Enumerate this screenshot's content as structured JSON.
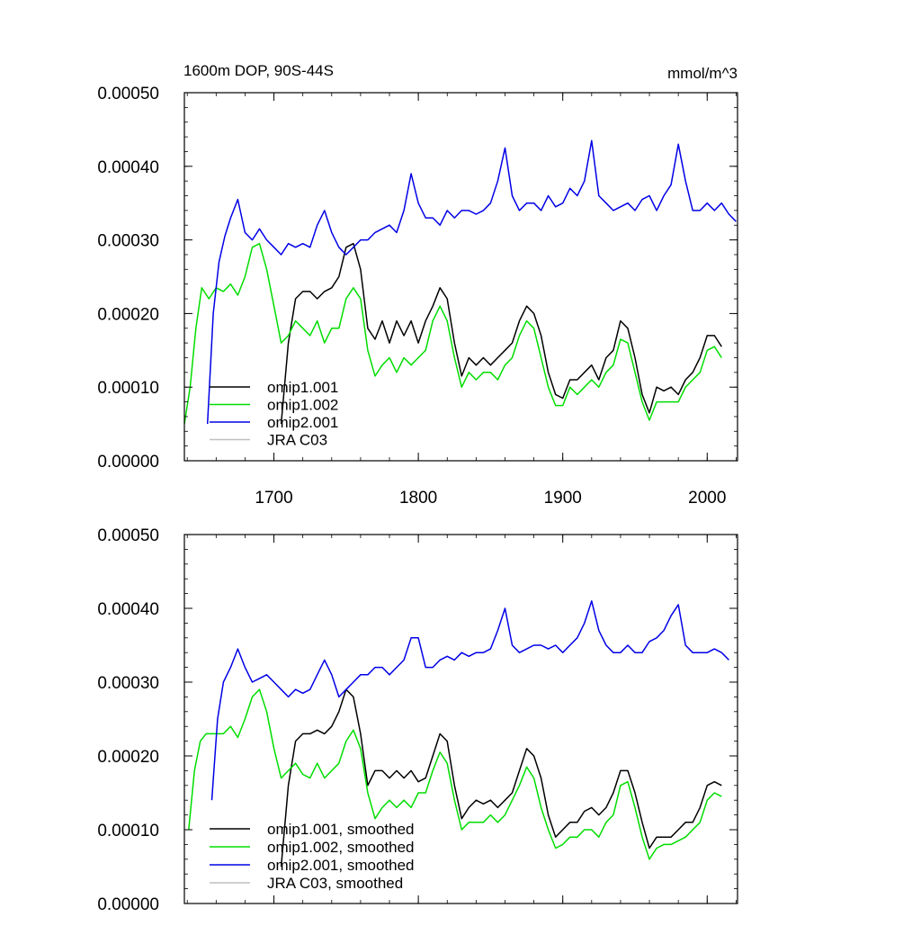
{
  "chart_data": [
    {
      "type": "line",
      "title_left": "1600m DOP, 90S-44S",
      "title_right": "mmol/m^3",
      "xlabel": "",
      "ylabel": "",
      "xlim": [
        1638,
        2021
      ],
      "ylim": [
        0.0,
        0.0005
      ],
      "x_ticks": [
        1700,
        1800,
        1900,
        2000
      ],
      "x_tick_labels": [
        "1700",
        "1800",
        "1900",
        "2000"
      ],
      "y_ticks": [
        0.0,
        0.0001,
        0.0002,
        0.0003,
        0.0004,
        0.0005
      ],
      "y_tick_labels": [
        "0.00000",
        "0.00010",
        "0.00020",
        "0.00030",
        "0.00040",
        "0.00050"
      ],
      "grid": false,
      "legend_position": "bottom-left",
      "series": [
        {
          "name": "omip1.001",
          "color": "#000000",
          "x": [
            1705,
            1710,
            1715,
            1720,
            1725,
            1730,
            1735,
            1740,
            1745,
            1750,
            1755,
            1760,
            1765,
            1770,
            1775,
            1780,
            1785,
            1790,
            1795,
            1800,
            1805,
            1810,
            1815,
            1820,
            1825,
            1830,
            1835,
            1840,
            1845,
            1850,
            1855,
            1860,
            1865,
            1870,
            1875,
            1880,
            1885,
            1890,
            1895,
            1900,
            1905,
            1910,
            1915,
            1920,
            1925,
            1930,
            1935,
            1940,
            1945,
            1950,
            1955,
            1960,
            1965,
            1970,
            1975,
            1980,
            1985,
            1990,
            1995,
            2000,
            2005,
            2010
          ],
          "values": [
            5e-05,
            0.00016,
            0.00022,
            0.00023,
            0.00023,
            0.00022,
            0.00023,
            0.000235,
            0.00025,
            0.00029,
            0.000295,
            0.00026,
            0.00018,
            0.000165,
            0.00019,
            0.00016,
            0.00019,
            0.00017,
            0.00019,
            0.00016,
            0.00019,
            0.00021,
            0.000235,
            0.00022,
            0.00016,
            0.000115,
            0.00014,
            0.00013,
            0.00014,
            0.00013,
            0.00014,
            0.00015,
            0.00016,
            0.00019,
            0.00021,
            0.0002,
            0.00017,
            0.00012,
            9e-05,
            8.5e-05,
            0.00011,
            0.00011,
            0.00012,
            0.00013,
            0.00011,
            0.00014,
            0.00015,
            0.00019,
            0.00018,
            0.00014,
            9e-05,
            6.5e-05,
            0.0001,
            9.5e-05,
            0.0001,
            9e-05,
            0.00011,
            0.00012,
            0.00014,
            0.00017,
            0.00017,
            0.000155
          ]
        },
        {
          "name": "omip1.002",
          "color": "#00dd00",
          "x": [
            1638,
            1642,
            1646,
            1650,
            1655,
            1660,
            1665,
            1670,
            1675,
            1680,
            1685,
            1690,
            1695,
            1700,
            1705,
            1710,
            1715,
            1720,
            1725,
            1730,
            1735,
            1740,
            1745,
            1750,
            1755,
            1760,
            1765,
            1770,
            1775,
            1780,
            1785,
            1790,
            1795,
            1800,
            1805,
            1810,
            1815,
            1820,
            1825,
            1830,
            1835,
            1840,
            1845,
            1850,
            1855,
            1860,
            1865,
            1870,
            1875,
            1880,
            1885,
            1890,
            1895,
            1900,
            1905,
            1910,
            1915,
            1920,
            1925,
            1930,
            1935,
            1940,
            1945,
            1950,
            1955,
            1960,
            1965,
            1970,
            1975,
            1980,
            1985,
            1990,
            1995,
            2000,
            2005,
            2010
          ],
          "values": [
            5e-05,
            0.0001,
            0.00018,
            0.000235,
            0.00022,
            0.000235,
            0.00023,
            0.00024,
            0.000225,
            0.00025,
            0.00029,
            0.000295,
            0.00026,
            0.00021,
            0.00016,
            0.00017,
            0.00019,
            0.00018,
            0.00017,
            0.00019,
            0.00016,
            0.00018,
            0.00018,
            0.00022,
            0.000235,
            0.00022,
            0.00015,
            0.000115,
            0.00013,
            0.00014,
            0.00012,
            0.00014,
            0.00013,
            0.00014,
            0.00015,
            0.00019,
            0.00021,
            0.00019,
            0.00014,
            0.0001,
            0.00012,
            0.00011,
            0.00012,
            0.00012,
            0.00011,
            0.00013,
            0.00014,
            0.00017,
            0.00019,
            0.00018,
            0.00014,
            0.0001,
            7.5e-05,
            7.5e-05,
            0.0001,
            9e-05,
            0.0001,
            0.00011,
            0.0001,
            0.00012,
            0.00013,
            0.000165,
            0.00016,
            0.00012,
            8e-05,
            5.5e-05,
            8e-05,
            8e-05,
            8e-05,
            8e-05,
            0.0001,
            0.00011,
            0.00012,
            0.00015,
            0.000155,
            0.00014
          ]
        },
        {
          "name": "omip2.001",
          "color": "#0000e6",
          "x": [
            1654,
            1658,
            1662,
            1666,
            1670,
            1675,
            1680,
            1685,
            1690,
            1695,
            1700,
            1705,
            1710,
            1715,
            1720,
            1725,
            1730,
            1735,
            1740,
            1745,
            1750,
            1755,
            1760,
            1765,
            1770,
            1775,
            1780,
            1785,
            1790,
            1795,
            1800,
            1805,
            1810,
            1815,
            1820,
            1825,
            1830,
            1835,
            1840,
            1845,
            1850,
            1855,
            1860,
            1865,
            1870,
            1875,
            1880,
            1885,
            1890,
            1895,
            1900,
            1905,
            1910,
            1915,
            1920,
            1925,
            1930,
            1935,
            1940,
            1945,
            1950,
            1955,
            1960,
            1965,
            1970,
            1975,
            1980,
            1985,
            1990,
            1995,
            2000,
            2005,
            2010,
            2015,
            2020
          ],
          "values": [
            5e-05,
            0.0002,
            0.00027,
            0.000305,
            0.00033,
            0.000355,
            0.00031,
            0.0003,
            0.000315,
            0.0003,
            0.00029,
            0.00028,
            0.000295,
            0.00029,
            0.000295,
            0.00029,
            0.00032,
            0.00034,
            0.00031,
            0.00029,
            0.00028,
            0.00029,
            0.0003,
            0.0003,
            0.00031,
            0.000315,
            0.00032,
            0.00031,
            0.00034,
            0.00039,
            0.00035,
            0.00033,
            0.00033,
            0.00032,
            0.00034,
            0.00033,
            0.00034,
            0.00034,
            0.000335,
            0.00034,
            0.00035,
            0.00038,
            0.000425,
            0.00036,
            0.00034,
            0.00035,
            0.00035,
            0.00034,
            0.00036,
            0.000345,
            0.00035,
            0.00037,
            0.00036,
            0.00038,
            0.000435,
            0.00036,
            0.00035,
            0.00034,
            0.000345,
            0.00035,
            0.00034,
            0.000355,
            0.00036,
            0.00034,
            0.00036,
            0.000375,
            0.00043,
            0.00038,
            0.00034,
            0.00034,
            0.00035,
            0.00034,
            0.00035,
            0.000335,
            0.000325
          ]
        },
        {
          "name": "JRA C03",
          "color": "#c0c0c0",
          "x": [],
          "values": []
        }
      ]
    },
    {
      "type": "line",
      "title_left": "",
      "title_right": "",
      "xlabel": "",
      "ylabel": "",
      "xlim": [
        1638,
        2021
      ],
      "ylim": [
        0.0,
        0.0005
      ],
      "x_ticks": [
        1700,
        1800,
        1900,
        2000
      ],
      "x_tick_labels": [],
      "y_ticks": [
        0.0,
        0.0001,
        0.0002,
        0.0003,
        0.0004,
        0.0005
      ],
      "y_tick_labels": [
        "0.00000",
        "0.00010",
        "0.00020",
        "0.00030",
        "0.00040",
        "0.00050"
      ],
      "grid": false,
      "legend_position": "bottom-left",
      "series": [
        {
          "name": "omip1.001, smoothed",
          "color": "#000000",
          "x": [
            1705,
            1710,
            1715,
            1720,
            1725,
            1730,
            1735,
            1740,
            1745,
            1750,
            1755,
            1760,
            1765,
            1770,
            1775,
            1780,
            1785,
            1790,
            1795,
            1800,
            1805,
            1810,
            1815,
            1820,
            1825,
            1830,
            1835,
            1840,
            1845,
            1850,
            1855,
            1860,
            1865,
            1870,
            1875,
            1880,
            1885,
            1890,
            1895,
            1900,
            1905,
            1910,
            1915,
            1920,
            1925,
            1930,
            1935,
            1940,
            1945,
            1950,
            1955,
            1960,
            1965,
            1970,
            1975,
            1980,
            1985,
            1990,
            1995,
            2000,
            2005,
            2010
          ],
          "values": [
            5e-05,
            0.00016,
            0.00022,
            0.00023,
            0.00023,
            0.000235,
            0.00023,
            0.00024,
            0.00026,
            0.00029,
            0.00028,
            0.00023,
            0.00016,
            0.00018,
            0.00018,
            0.00017,
            0.00018,
            0.00017,
            0.00018,
            0.000165,
            0.00017,
            0.0002,
            0.00023,
            0.00022,
            0.00016,
            0.000115,
            0.00013,
            0.00014,
            0.000135,
            0.00014,
            0.00013,
            0.00014,
            0.00015,
            0.00018,
            0.00021,
            0.0002,
            0.00017,
            0.00012,
            9e-05,
            0.0001,
            0.00011,
            0.00011,
            0.000125,
            0.00013,
            0.00012,
            0.00013,
            0.00015,
            0.00018,
            0.00018,
            0.00015,
            0.00011,
            7.5e-05,
            9e-05,
            9e-05,
            9e-05,
            0.0001,
            0.00011,
            0.00011,
            0.00013,
            0.00016,
            0.000165,
            0.00016
          ]
        },
        {
          "name": "omip1.002, smoothed",
          "color": "#00dd00",
          "x": [
            1641,
            1645,
            1649,
            1653,
            1657,
            1661,
            1665,
            1670,
            1675,
            1680,
            1685,
            1690,
            1695,
            1700,
            1705,
            1710,
            1715,
            1720,
            1725,
            1730,
            1735,
            1740,
            1745,
            1750,
            1755,
            1760,
            1765,
            1770,
            1775,
            1780,
            1785,
            1790,
            1795,
            1800,
            1805,
            1810,
            1815,
            1820,
            1825,
            1830,
            1835,
            1840,
            1845,
            1850,
            1855,
            1860,
            1865,
            1870,
            1875,
            1880,
            1885,
            1890,
            1895,
            1900,
            1905,
            1910,
            1915,
            1920,
            1925,
            1930,
            1935,
            1940,
            1945,
            1950,
            1955,
            1960,
            1965,
            1970,
            1975,
            1980,
            1985,
            1990,
            1995,
            2000,
            2005,
            2010
          ],
          "values": [
            0.0001,
            0.00018,
            0.00022,
            0.00023,
            0.00023,
            0.00023,
            0.00023,
            0.00024,
            0.000225,
            0.00025,
            0.00028,
            0.00029,
            0.00026,
            0.00021,
            0.00017,
            0.00018,
            0.00019,
            0.000175,
            0.00017,
            0.00019,
            0.00017,
            0.00018,
            0.00019,
            0.00022,
            0.000235,
            0.00021,
            0.00015,
            0.000115,
            0.00013,
            0.00014,
            0.00013,
            0.00014,
            0.00013,
            0.00015,
            0.00015,
            0.00018,
            0.000205,
            0.00019,
            0.00014,
            0.0001,
            0.00011,
            0.00011,
            0.00011,
            0.00012,
            0.00011,
            0.00012,
            0.00014,
            0.00016,
            0.000185,
            0.00017,
            0.00013,
            0.0001,
            7.5e-05,
            8e-05,
            9e-05,
            9e-05,
            0.0001,
            0.0001,
            9e-05,
            0.00011,
            0.00012,
            0.00016,
            0.000165,
            0.00013,
            9e-05,
            6e-05,
            7.5e-05,
            8e-05,
            8e-05,
            8.5e-05,
            9e-05,
            0.0001,
            0.00011,
            0.00014,
            0.00015,
            0.000145
          ]
        },
        {
          "name": "omip2.001, smoothed",
          "color": "#0000e6",
          "x": [
            1657,
            1661,
            1665,
            1670,
            1675,
            1680,
            1685,
            1690,
            1695,
            1700,
            1705,
            1710,
            1715,
            1720,
            1725,
            1730,
            1735,
            1740,
            1745,
            1750,
            1755,
            1760,
            1765,
            1770,
            1775,
            1780,
            1785,
            1790,
            1795,
            1800,
            1805,
            1810,
            1815,
            1820,
            1825,
            1830,
            1835,
            1840,
            1845,
            1850,
            1855,
            1860,
            1865,
            1870,
            1875,
            1880,
            1885,
            1890,
            1895,
            1900,
            1905,
            1910,
            1915,
            1920,
            1925,
            1930,
            1935,
            1940,
            1945,
            1950,
            1955,
            1960,
            1965,
            1970,
            1975,
            1980,
            1985,
            1990,
            1995,
            2000,
            2005,
            2010,
            2015
          ],
          "values": [
            0.00014,
            0.00025,
            0.0003,
            0.00032,
            0.000345,
            0.00032,
            0.0003,
            0.000305,
            0.00031,
            0.0003,
            0.00029,
            0.00028,
            0.00029,
            0.000285,
            0.00029,
            0.00031,
            0.00033,
            0.00031,
            0.00028,
            0.00029,
            0.0003,
            0.00031,
            0.00031,
            0.00032,
            0.00032,
            0.00031,
            0.00032,
            0.00033,
            0.00036,
            0.00036,
            0.00032,
            0.00032,
            0.00033,
            0.000335,
            0.00033,
            0.00034,
            0.000335,
            0.00034,
            0.00034,
            0.000345,
            0.00037,
            0.0004,
            0.00035,
            0.00034,
            0.000345,
            0.00035,
            0.00035,
            0.000345,
            0.00035,
            0.00034,
            0.00035,
            0.00036,
            0.00038,
            0.00041,
            0.00037,
            0.00035,
            0.00034,
            0.00034,
            0.00035,
            0.00034,
            0.00034,
            0.000355,
            0.00036,
            0.00037,
            0.00039,
            0.000405,
            0.00035,
            0.00034,
            0.00034,
            0.00034,
            0.000345,
            0.00034,
            0.00033
          ]
        },
        {
          "name": "JRA C03, smoothed",
          "color": "#c0c0c0",
          "x": [],
          "values": []
        }
      ]
    }
  ]
}
